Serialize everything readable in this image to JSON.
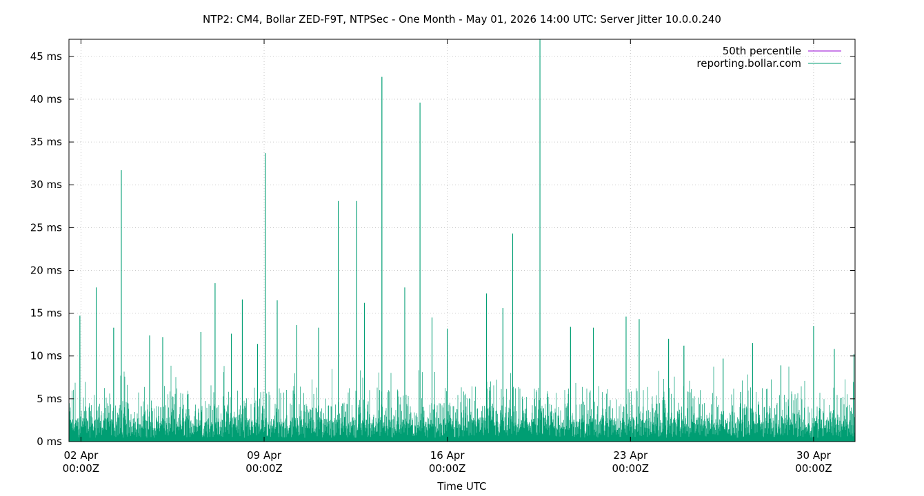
{
  "chart_data": {
    "type": "line",
    "title": "NTP2: CM4, Bollar ZED-F9T, NTPSec - One Month - May 01, 2026 14:00 UTC: Server Jitter 10.0.0.240",
    "xlabel": "Time UTC",
    "ylabel": "",
    "x_range": [
      "2026-04-01T13:00Z",
      "2026-05-01T14:00Z"
    ],
    "ylim": [
      0,
      47
    ],
    "y_ticks": [
      0,
      5,
      10,
      15,
      20,
      25,
      30,
      35,
      40,
      45
    ],
    "y_tick_labels": [
      "0 ms",
      "5 ms",
      "10 ms",
      "15 ms",
      "20 ms",
      "25 ms",
      "30 ms",
      "35 ms",
      "40 ms",
      "45 ms"
    ],
    "x_ticks": [
      {
        "date": "2026-04-02T00:00Z",
        "line1": "02 Apr",
        "line2": "00:00Z"
      },
      {
        "date": "2026-04-09T00:00Z",
        "line1": "09 Apr",
        "line2": "00:00Z"
      },
      {
        "date": "2026-04-16T00:00Z",
        "line1": "16 Apr",
        "line2": "00:00Z"
      },
      {
        "date": "2026-04-23T00:00Z",
        "line1": "23 Apr",
        "line2": "00:00Z"
      },
      {
        "date": "2026-04-30T00:00Z",
        "line1": "30 Apr",
        "line2": "00:00Z"
      }
    ],
    "grid": true,
    "legend_position": "top-right",
    "series": [
      {
        "name": "50th percentile",
        "color": "#9400d3",
        "values": []
      },
      {
        "name": "reporting.bollar.com",
        "color": "#009e73",
        "baseline_typical_ms": 1.5,
        "spikes": [
          {
            "t": "2026-04-01T23:00Z",
            "y": 14.7
          },
          {
            "t": "2026-04-02T14:00Z",
            "y": 18.0
          },
          {
            "t": "2026-04-03T06:00Z",
            "y": 13.3
          },
          {
            "t": "2026-04-03T13:00Z",
            "y": 31.7
          },
          {
            "t": "2026-04-04T15:00Z",
            "y": 12.4
          },
          {
            "t": "2026-04-05T03:00Z",
            "y": 12.2
          },
          {
            "t": "2026-04-06T14:00Z",
            "y": 12.8
          },
          {
            "t": "2026-04-07T03:00Z",
            "y": 18.5
          },
          {
            "t": "2026-04-07T18:00Z",
            "y": 12.6
          },
          {
            "t": "2026-04-08T04:00Z",
            "y": 16.6
          },
          {
            "t": "2026-04-08T18:00Z",
            "y": 11.4
          },
          {
            "t": "2026-04-09T01:00Z",
            "y": 33.7
          },
          {
            "t": "2026-04-09T12:00Z",
            "y": 16.5
          },
          {
            "t": "2026-04-10T06:00Z",
            "y": 13.6
          },
          {
            "t": "2026-04-11T02:00Z",
            "y": 13.3
          },
          {
            "t": "2026-04-11T20:00Z",
            "y": 28.1
          },
          {
            "t": "2026-04-12T13:00Z",
            "y": 28.1
          },
          {
            "t": "2026-04-12T20:00Z",
            "y": 16.2
          },
          {
            "t": "2026-04-13T12:00Z",
            "y": 42.6
          },
          {
            "t": "2026-04-14T09:00Z",
            "y": 18.0
          },
          {
            "t": "2026-04-14T23:00Z",
            "y": 39.6
          },
          {
            "t": "2026-04-15T10:00Z",
            "y": 14.5
          },
          {
            "t": "2026-04-16T00:00Z",
            "y": 13.2
          },
          {
            "t": "2026-04-17T12:00Z",
            "y": 17.3
          },
          {
            "t": "2026-04-18T03:00Z",
            "y": 15.6
          },
          {
            "t": "2026-04-18T12:00Z",
            "y": 24.3
          },
          {
            "t": "2026-04-19T13:00Z",
            "y": 47.0
          },
          {
            "t": "2026-04-20T17:00Z",
            "y": 13.4
          },
          {
            "t": "2026-04-21T14:00Z",
            "y": 13.3
          },
          {
            "t": "2026-04-22T20:00Z",
            "y": 14.6
          },
          {
            "t": "2026-04-23T08:00Z",
            "y": 14.3
          },
          {
            "t": "2026-04-24T11:00Z",
            "y": 12.0
          },
          {
            "t": "2026-04-25T01:00Z",
            "y": 11.2
          },
          {
            "t": "2026-04-26T13:00Z",
            "y": 9.7
          },
          {
            "t": "2026-04-27T16:00Z",
            "y": 11.5
          },
          {
            "t": "2026-04-28T18:00Z",
            "y": 8.9
          },
          {
            "t": "2026-04-30T00:00Z",
            "y": 13.5
          },
          {
            "t": "2026-04-30T19:00Z",
            "y": 10.8
          },
          {
            "t": "2026-05-01T13:00Z",
            "y": 10.2
          }
        ]
      }
    ]
  }
}
